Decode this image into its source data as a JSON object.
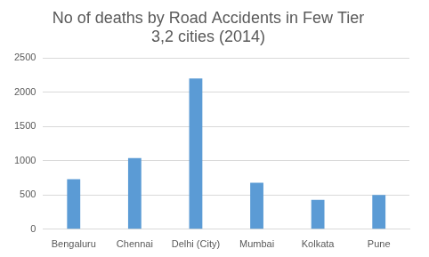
{
  "chart_data": {
    "type": "bar",
    "title": "No of deaths by Road Accidents in Few Tier 3,2 cities (2014)",
    "categories": [
      "Bengaluru",
      "Chennai",
      "Delhi (City)",
      "Mumbai",
      "Kolkata",
      "Pune"
    ],
    "values": [
      730,
      1040,
      2200,
      680,
      430,
      500
    ],
    "color": "#5b9bd5",
    "ylim": [
      0,
      2500
    ],
    "yticks": [
      0,
      500,
      1000,
      1500,
      2000,
      2500
    ],
    "grid": true
  }
}
